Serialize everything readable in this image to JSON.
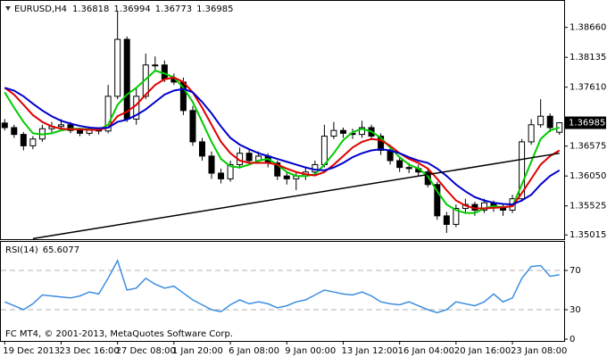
{
  "chart_data": [
    {
      "type": "candlestick",
      "title": "EURUSD,H4",
      "categories": [
        "19 Dec 2013",
        null,
        null,
        null,
        null,
        null,
        "23 Dec 16:00",
        null,
        null,
        null,
        null,
        null,
        "27 Dec 08:00",
        null,
        null,
        null,
        null,
        null,
        "1 Jan 20:00",
        null,
        null,
        null,
        null,
        null,
        "6 Jan 08:00",
        null,
        null,
        null,
        null,
        null,
        "9 Jan 00:00",
        null,
        null,
        null,
        null,
        null,
        "13 Jan 12:00",
        null,
        null,
        null,
        null,
        null,
        "16 Jan 04:00",
        null,
        null,
        null,
        null,
        null,
        "20 Jan 16:00",
        null,
        null,
        null,
        null,
        null,
        "23 Jan 08:00",
        null,
        null,
        null,
        null,
        null
      ],
      "open": [
        1.3698,
        1.369,
        1.3678,
        1.3658,
        1.367,
        1.3688,
        1.3692,
        1.3695,
        1.3685,
        1.368,
        1.3686,
        1.3684,
        1.3745,
        1.3845,
        1.3705,
        1.3745,
        1.38,
        1.38,
        1.3775,
        1.377,
        1.372,
        1.3665,
        1.364,
        1.361,
        1.36,
        1.3625,
        1.3645,
        1.3632,
        1.364,
        1.3628,
        1.3605,
        1.36,
        1.3605,
        1.3612,
        1.3625,
        1.3675,
        1.3685,
        1.368,
        1.3678,
        1.369,
        1.3675,
        1.365,
        1.3632,
        1.362,
        1.3618,
        1.3612,
        1.359,
        1.3535,
        1.352,
        1.3548,
        1.3555,
        1.3545,
        1.3558,
        1.355,
        1.3545,
        1.3565,
        1.3665,
        1.3695,
        1.371,
        1.36818
      ],
      "high": [
        1.3705,
        1.3695,
        1.3682,
        1.3675,
        1.3695,
        1.37,
        1.3705,
        1.37,
        1.369,
        1.3692,
        1.369,
        1.3765,
        1.3895,
        1.385,
        1.376,
        1.382,
        1.3815,
        1.3808,
        1.3785,
        1.3778,
        1.3728,
        1.3672,
        1.3648,
        1.3618,
        1.3632,
        1.3655,
        1.3652,
        1.3648,
        1.3645,
        1.3632,
        1.3612,
        1.3612,
        1.362,
        1.3632,
        1.3695,
        1.37,
        1.369,
        1.3688,
        1.3702,
        1.3695,
        1.368,
        1.3655,
        1.364,
        1.3628,
        1.3625,
        1.3618,
        1.3595,
        1.3542,
        1.3555,
        1.3565,
        1.356,
        1.3565,
        1.3562,
        1.3555,
        1.3572,
        1.367,
        1.3705,
        1.374,
        1.3715,
        1.36994
      ],
      "low": [
        1.3685,
        1.3672,
        1.365,
        1.3652,
        1.3665,
        1.3682,
        1.3688,
        1.368,
        1.3675,
        1.3676,
        1.3678,
        1.368,
        1.374,
        1.37,
        1.3695,
        1.374,
        1.379,
        1.377,
        1.3765,
        1.3712,
        1.3658,
        1.3632,
        1.36,
        1.3592,
        1.3595,
        1.3618,
        1.3628,
        1.3628,
        1.362,
        1.3598,
        1.359,
        1.358,
        1.3598,
        1.3608,
        1.362,
        1.367,
        1.3672,
        1.367,
        1.3672,
        1.3668,
        1.3642,
        1.3625,
        1.3612,
        1.361,
        1.3605,
        1.3585,
        1.3528,
        1.3505,
        1.3515,
        1.354,
        1.3535,
        1.354,
        1.3542,
        1.3535,
        1.354,
        1.356,
        1.366,
        1.369,
        1.3682,
        1.36773
      ],
      "close": [
        1.369,
        1.3678,
        1.3658,
        1.367,
        1.3688,
        1.3692,
        1.3695,
        1.3685,
        1.368,
        1.3686,
        1.3684,
        1.3745,
        1.3845,
        1.3705,
        1.3745,
        1.38,
        1.38,
        1.3775,
        1.377,
        1.372,
        1.3665,
        1.364,
        1.361,
        1.36,
        1.3625,
        1.3645,
        1.3632,
        1.364,
        1.3628,
        1.3605,
        1.36,
        1.3605,
        1.3612,
        1.3625,
        1.3675,
        1.3685,
        1.368,
        1.3678,
        1.369,
        1.3675,
        1.365,
        1.3632,
        1.362,
        1.3618,
        1.3612,
        1.359,
        1.3535,
        1.352,
        1.3548,
        1.3555,
        1.3545,
        1.3558,
        1.355,
        1.3545,
        1.3565,
        1.3665,
        1.3695,
        1.371,
        1.369,
        1.36985
      ],
      "up_color": "#ffffff",
      "down_color": "#000000",
      "wick_color": "#000000",
      "series": [
        {
          "color": "#00cc00",
          "values": [
            1.3752,
            1.3725,
            1.37,
            1.368,
            1.3678,
            1.368,
            1.3685,
            1.3688,
            1.3688,
            1.3687,
            1.3686,
            1.3695,
            1.373,
            1.3748,
            1.376,
            1.3775,
            1.379,
            1.3785,
            1.3778,
            1.376,
            1.3735,
            1.37,
            1.3665,
            1.3635,
            1.3622,
            1.362,
            1.3625,
            1.3632,
            1.3635,
            1.3625,
            1.3612,
            1.3605,
            1.3605,
            1.3608,
            1.3625,
            1.3645,
            1.3668,
            1.3682,
            1.3688,
            1.3683,
            1.3672,
            1.3655,
            1.3638,
            1.3625,
            1.3618,
            1.3605,
            1.3578,
            1.3555,
            1.3545,
            1.354,
            1.354,
            1.3548,
            1.3552,
            1.355,
            1.3552,
            1.359,
            1.363,
            1.367,
            1.3685,
            1.369
          ]
        },
        {
          "color": "#e00000",
          "values": [
            1.376,
            1.3748,
            1.373,
            1.3712,
            1.37,
            1.3692,
            1.3688,
            1.3687,
            1.3687,
            1.3686,
            1.3686,
            1.369,
            1.371,
            1.3718,
            1.373,
            1.3748,
            1.3765,
            1.3775,
            1.3778,
            1.377,
            1.3752,
            1.3725,
            1.3695,
            1.3665,
            1.3645,
            1.3632,
            1.3628,
            1.3628,
            1.3628,
            1.3625,
            1.3618,
            1.3612,
            1.3608,
            1.3606,
            1.3612,
            1.3625,
            1.364,
            1.3655,
            1.3665,
            1.367,
            1.3668,
            1.3658,
            1.3645,
            1.3635,
            1.3628,
            1.3618,
            1.36,
            1.358,
            1.3562,
            1.3553,
            1.3548,
            1.3548,
            1.3549,
            1.355,
            1.3552,
            1.3575,
            1.36,
            1.3625,
            1.364,
            1.365
          ]
        },
        {
          "color": "#0000cc",
          "values": [
            1.376,
            1.3755,
            1.3745,
            1.3732,
            1.372,
            1.371,
            1.3702,
            1.3697,
            1.3693,
            1.369,
            1.3689,
            1.369,
            1.37,
            1.3704,
            1.3712,
            1.3722,
            1.3735,
            1.3748,
            1.3755,
            1.3758,
            1.3752,
            1.3735,
            1.3715,
            1.3692,
            1.3672,
            1.366,
            1.3652,
            1.3645,
            1.364,
            1.3635,
            1.363,
            1.3625,
            1.362,
            1.3616,
            1.3615,
            1.362,
            1.3628,
            1.3638,
            1.3645,
            1.365,
            1.3652,
            1.365,
            1.3645,
            1.3638,
            1.3632,
            1.3628,
            1.3618,
            1.3605,
            1.359,
            1.3578,
            1.3568,
            1.3562,
            1.3558,
            1.3556,
            1.3555,
            1.3562,
            1.3572,
            1.359,
            1.3605,
            1.3615
          ]
        }
      ],
      "trendline": {
        "x": [
          3,
          59
        ],
        "values": [
          1.3495,
          1.3645
        ],
        "color": "#000000"
      },
      "ylim": [
        1.3494,
        1.3911
      ],
      "yticks": [
        {
          "value": 1.3866,
          "label": "1.38660"
        },
        1.38135,
        {
          "value": 1.3761,
          "label": "1.37610"
        },
        1.36575,
        {
          "value": 1.3605,
          "label": "1.36050"
        },
        1.35525,
        1.35015
      ]
    },
    {
      "type": "line",
      "name": "RSI(14)",
      "color": "#3d8ee0",
      "values": [
        38,
        34,
        30,
        36,
        45,
        44,
        43,
        42,
        44,
        48,
        46,
        62,
        80,
        50,
        52,
        62,
        56,
        52,
        54,
        47,
        40,
        35,
        30,
        28,
        35,
        40,
        36,
        38,
        36,
        32,
        34,
        38,
        40,
        45,
        50,
        48,
        46,
        45,
        48,
        44,
        38,
        36,
        35,
        38,
        34,
        30,
        27,
        30,
        38,
        36,
        34,
        38,
        46,
        38,
        42,
        62,
        74,
        75,
        64,
        65.6077
      ],
      "ylim": [
        0,
        100
      ],
      "yticks": [
        70,
        30,
        0
      ],
      "levels": [
        70,
        30
      ]
    }
  ],
  "footer": "FC MT4, © 2001-2013, MetaQuotes Software Corp."
}
